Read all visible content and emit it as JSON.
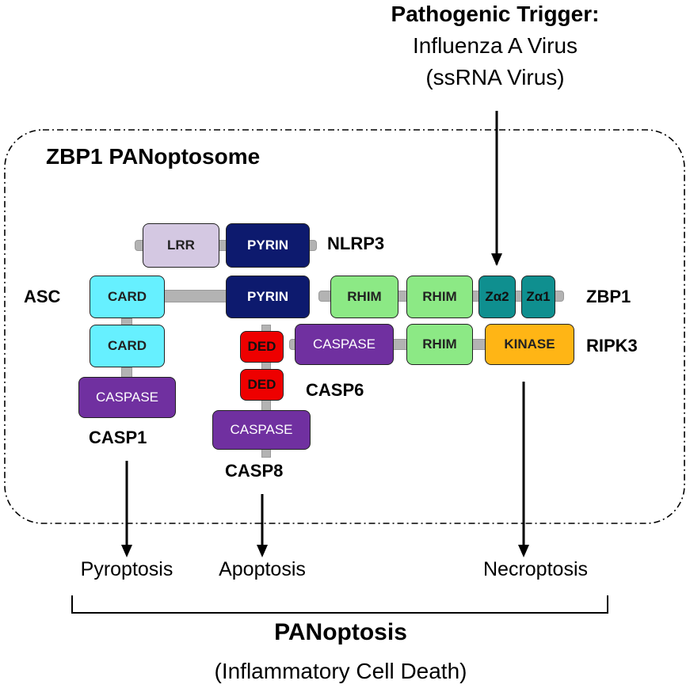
{
  "trigger": {
    "heading": "Pathogenic Trigger:",
    "line1": "Influenza A Virus",
    "line2": "(ssRNA Virus)"
  },
  "complex_title": "ZBP1 PANoptosome",
  "protein_labels": {
    "nlrp3": "NLRP3",
    "asc": "ASC",
    "zbp1": "ZBP1",
    "ripk3": "RIPK3",
    "casp6": "CASP6",
    "casp1": "CASP1",
    "casp8": "CASP8"
  },
  "domains": {
    "lrr": "LRR",
    "pyrin": "PYRIN",
    "card": "CARD",
    "rhim": "RHIM",
    "za2": "Zα2",
    "za1": "Zα1",
    "caspase": "CASPASE",
    "kinase": "KINASE",
    "ded": "DED"
  },
  "outcomes": {
    "pyroptosis": "Pyroptosis",
    "apoptosis": "Apoptosis",
    "necroptosis": "Necroptosis"
  },
  "summary": {
    "title": "PANoptosis",
    "subtitle": "(Inflammatory Cell Death)"
  },
  "colors": {
    "lrr": "#d4c8e2",
    "pyrin": "#0d1a6e",
    "card": "#66f0ff",
    "rhim": "#8ce985",
    "z_domain": "#0f8f8f",
    "caspase": "#7030a0",
    "kinase": "#ffb515",
    "ded": "#ee0000"
  }
}
